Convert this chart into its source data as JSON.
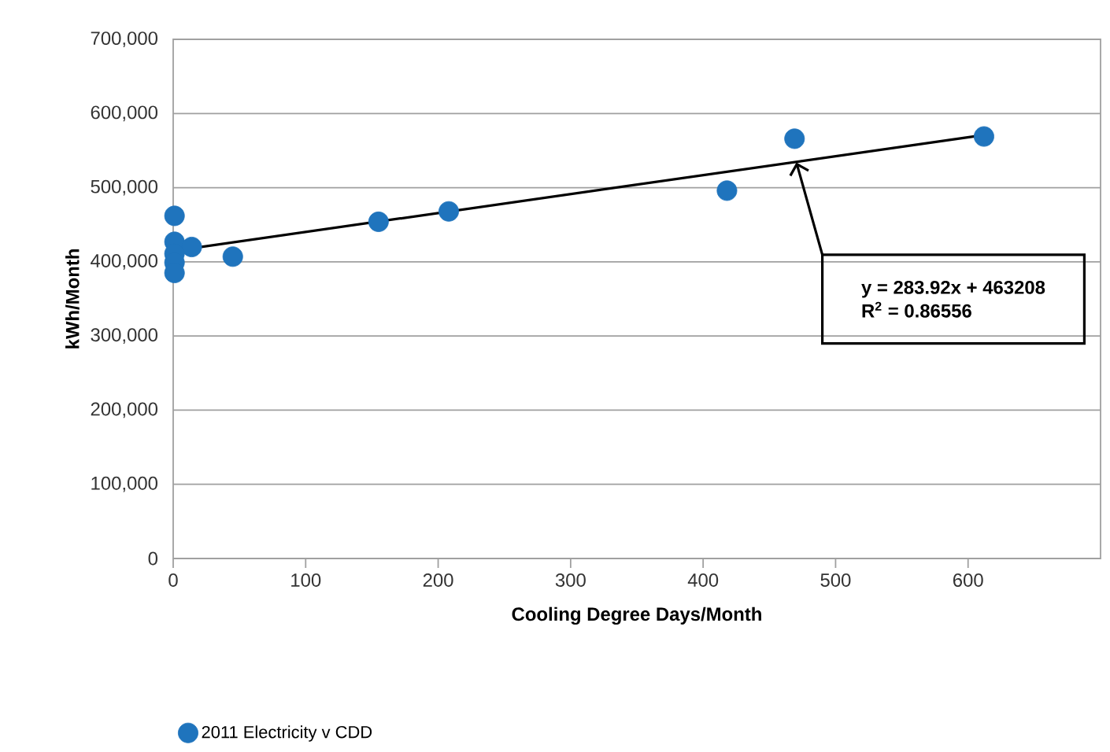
{
  "chart_data": {
    "type": "scatter",
    "xlabel": "Cooling Degree Days/Month",
    "ylabel": "kWh/Month",
    "series": [
      {
        "name": "2011 Electricity v CDD",
        "color": "#1f74bd",
        "marker": "circle",
        "x": [
          1,
          1,
          14,
          1,
          1,
          1,
          45,
          155,
          208,
          418,
          469,
          612
        ],
        "values": [
          462000,
          427000,
          420000,
          411000,
          399000,
          385000,
          407000,
          454000,
          468000,
          496000,
          566000,
          569000
        ]
      },
      {
        "type": "line",
        "color": "#000000",
        "marker": "none",
        "x": [
          5,
          612
        ],
        "values": [
          416000,
          571000
        ]
      }
    ],
    "xlim": [
      0,
      700
    ],
    "xticks": [
      0,
      100,
      200,
      300,
      400,
      500,
      600
    ],
    "ylim": [
      0,
      700000
    ],
    "yticks": [
      0,
      {
        "value": 100000,
        "label": "100,000"
      },
      {
        "value": 200000,
        "label": "200,000"
      },
      {
        "value": 300000,
        "label": "300,000"
      },
      {
        "value": 400000,
        "label": "400,000"
      },
      {
        "value": 500000,
        "label": "500,000"
      },
      {
        "value": 600000,
        "label": "600,000"
      },
      {
        "value": 700000,
        "label": "700,000"
      }
    ],
    "grid": "y",
    "legend": "bottom",
    "annotations": [
      "y = 283.92x + 463208",
      "R$^{2}$ = 0.86556"
    ]
  }
}
